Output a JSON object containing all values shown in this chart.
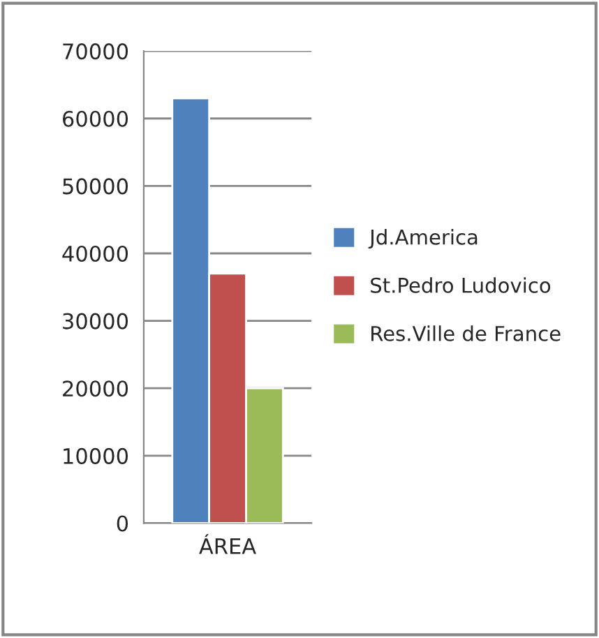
{
  "chart_data": {
    "type": "bar",
    "categories": [
      "ÁREA"
    ],
    "series": [
      {
        "name": "Jd.America",
        "color": "#4f81bd",
        "values": [
          63000
        ]
      },
      {
        "name": "St.Pedro Ludovico",
        "color": "#c0504d",
        "values": [
          37000
        ]
      },
      {
        "name": "Res.Ville de France",
        "color": "#9bbb59",
        "values": [
          20000
        ]
      }
    ],
    "ylim": [
      0,
      70000
    ],
    "yticks": [
      0,
      10000,
      20000,
      30000,
      40000,
      50000,
      60000,
      70000
    ],
    "grid": "y",
    "legend": "right"
  }
}
